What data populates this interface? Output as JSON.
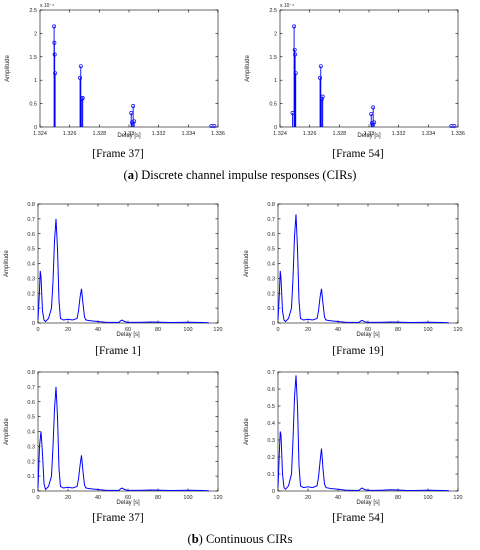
{
  "panels": [
    {
      "caption": "[Frame 37]"
    },
    {
      "caption": "[Frame 54]"
    },
    {
      "caption": "[Frame 1]"
    },
    {
      "caption": "[Frame 19]"
    },
    {
      "caption": "[Frame 37]"
    },
    {
      "caption": "[Frame 54]"
    }
  ],
  "section_a": {
    "letter": "a",
    "text": " Discrete channel impulse responses (CIRs)"
  },
  "section_b": {
    "letter": "b",
    "text": " Continuous CIRs"
  },
  "colors": {
    "series": "#0000ff",
    "axis": "#000000"
  },
  "chart_data": [
    {
      "type": "stem",
      "xlabel": "Delay [s]",
      "ylabel": "Amplitude",
      "y_exponent": "x 10⁻⁴",
      "xlim": [
        1.324,
        1.336
      ],
      "ylim": [
        0,
        2.5
      ],
      "xticks": [
        "1.324",
        "1.326",
        "1.328",
        "1.33",
        "1.332",
        "1.334",
        "1.336"
      ],
      "xtick_values": [
        1.324,
        1.326,
        1.328,
        1.33,
        1.332,
        1.334,
        1.336
      ],
      "yticks": [
        "0",
        "0.5",
        "1",
        "1.5",
        "2",
        "2.5"
      ],
      "ytick_values": [
        0,
        0.5,
        1,
        1.5,
        2,
        2.5
      ],
      "points": [
        {
          "x": 1.32495,
          "y": 2.15
        },
        {
          "x": 1.32497,
          "y": 1.8
        },
        {
          "x": 1.32499,
          "y": 1.55
        },
        {
          "x": 1.32502,
          "y": 1.15
        },
        {
          "x": 1.3267,
          "y": 1.05
        },
        {
          "x": 1.32675,
          "y": 1.3
        },
        {
          "x": 1.32682,
          "y": 0.6
        },
        {
          "x": 1.32688,
          "y": 0.62
        },
        {
          "x": 1.33015,
          "y": 0.3
        },
        {
          "x": 1.3302,
          "y": 0.1
        },
        {
          "x": 1.33028,
          "y": 0.45
        },
        {
          "x": 1.33035,
          "y": 0.12
        },
        {
          "x": 1.33555,
          "y": 0.02
        },
        {
          "x": 1.33575,
          "y": 0.02
        }
      ]
    },
    {
      "type": "stem",
      "xlabel": "Delay [s]",
      "ylabel": "Amplitude",
      "y_exponent": "x 10⁻⁴",
      "xlim": [
        1.324,
        1.336
      ],
      "ylim": [
        0,
        2.5
      ],
      "xticks": [
        "1.324",
        "1.326",
        "1.328",
        "1.33",
        "1.332",
        "1.334",
        "1.336"
      ],
      "xtick_values": [
        1.324,
        1.326,
        1.328,
        1.33,
        1.332,
        1.334,
        1.336
      ],
      "yticks": [
        "0",
        "0.5",
        "1",
        "1.5",
        "2",
        "2.5"
      ],
      "ytick_values": [
        0,
        0.5,
        1,
        1.5,
        2,
        2.5
      ],
      "points": [
        {
          "x": 1.32485,
          "y": 0.3
        },
        {
          "x": 1.32495,
          "y": 2.15
        },
        {
          "x": 1.32499,
          "y": 1.65
        },
        {
          "x": 1.32502,
          "y": 1.55
        },
        {
          "x": 1.32506,
          "y": 1.15
        },
        {
          "x": 1.3267,
          "y": 1.05
        },
        {
          "x": 1.32675,
          "y": 1.3
        },
        {
          "x": 1.32682,
          "y": 0.6
        },
        {
          "x": 1.32688,
          "y": 0.65
        },
        {
          "x": 1.33015,
          "y": 0.28
        },
        {
          "x": 1.3302,
          "y": 0.08
        },
        {
          "x": 1.33028,
          "y": 0.42
        },
        {
          "x": 1.33035,
          "y": 0.1
        },
        {
          "x": 1.33555,
          "y": 0.02
        },
        {
          "x": 1.33575,
          "y": 0.02
        }
      ]
    },
    {
      "type": "line",
      "xlabel": "Delay [s]",
      "ylabel": "Amplitude",
      "xlim": [
        0,
        120
      ],
      "ylim": [
        0,
        0.8
      ],
      "xticks": [
        "0",
        "20",
        "40",
        "60",
        "80",
        "100",
        "120"
      ],
      "xtick_values": [
        0,
        20,
        40,
        60,
        80,
        100,
        120
      ],
      "yticks": [
        "0",
        "0.1",
        "0.2",
        "0.3",
        "0.4",
        "0.5",
        "0.6",
        "0.7",
        "0.8"
      ],
      "ytick_values": [
        0,
        0.1,
        0.2,
        0.3,
        0.4,
        0.5,
        0.6,
        0.7,
        0.8
      ],
      "x": [
        0,
        1,
        1.5,
        2,
        3,
        4,
        5,
        7,
        9,
        10,
        11,
        12,
        13,
        14,
        15,
        17,
        20,
        23,
        26,
        27,
        28,
        29,
        30,
        31,
        32,
        35,
        40,
        45,
        50,
        54,
        55,
        56,
        57,
        58,
        59,
        60,
        62,
        65,
        70,
        75,
        80,
        85,
        90,
        95,
        100,
        105,
        110,
        113,
        114
      ],
      "y": [
        0.02,
        0.22,
        0.35,
        0.31,
        0.08,
        0.02,
        0.01,
        0.03,
        0.1,
        0.28,
        0.55,
        0.7,
        0.5,
        0.15,
        0.03,
        0.02,
        0.025,
        0.02,
        0.03,
        0.08,
        0.17,
        0.23,
        0.13,
        0.04,
        0.02,
        0.015,
        0.01,
        0.005,
        0.004,
        0.004,
        0.015,
        0.02,
        0.014,
        0.01,
        0.006,
        0.005,
        0.004,
        0.004,
        0.005,
        0.007,
        0.006,
        0.004,
        0.003,
        0.004,
        0.005,
        0.004,
        0.003,
        0.002,
        0.0
      ]
    },
    {
      "type": "line",
      "xlabel": "Delay [s]",
      "ylabel": "Amplitude",
      "xlim": [
        0,
        120
      ],
      "ylim": [
        0,
        0.8
      ],
      "xticks": [
        "0",
        "20",
        "40",
        "60",
        "80",
        "100",
        "120"
      ],
      "xtick_values": [
        0,
        20,
        40,
        60,
        80,
        100,
        120
      ],
      "yticks": [
        "0",
        "0.1",
        "0.2",
        "0.3",
        "0.4",
        "0.5",
        "0.6",
        "0.7",
        "0.8"
      ],
      "ytick_values": [
        0,
        0.1,
        0.2,
        0.3,
        0.4,
        0.5,
        0.6,
        0.7,
        0.8
      ],
      "x": [
        0,
        1,
        1.5,
        2,
        3,
        4,
        5,
        7,
        9,
        10,
        11,
        12,
        13,
        14,
        15,
        17,
        20,
        23,
        26,
        27,
        28,
        29,
        30,
        31,
        32,
        35,
        40,
        45,
        50,
        54,
        55,
        56,
        57,
        58,
        59,
        60,
        62,
        65,
        70,
        75,
        80,
        85,
        90,
        95,
        100,
        105,
        110,
        113,
        114
      ],
      "y": [
        0.02,
        0.22,
        0.35,
        0.3,
        0.08,
        0.02,
        0.01,
        0.03,
        0.1,
        0.3,
        0.58,
        0.73,
        0.5,
        0.15,
        0.03,
        0.02,
        0.025,
        0.02,
        0.03,
        0.08,
        0.17,
        0.23,
        0.13,
        0.04,
        0.02,
        0.015,
        0.01,
        0.005,
        0.004,
        0.004,
        0.012,
        0.018,
        0.012,
        0.008,
        0.006,
        0.005,
        0.004,
        0.004,
        0.005,
        0.007,
        0.006,
        0.004,
        0.003,
        0.004,
        0.005,
        0.004,
        0.003,
        0.002,
        0.0
      ]
    },
    {
      "type": "line",
      "xlabel": "Delay [s]",
      "ylabel": "Amplitude",
      "xlim": [
        0,
        120
      ],
      "ylim": [
        0,
        0.8
      ],
      "xticks": [
        "0",
        "20",
        "40",
        "60",
        "80",
        "100",
        "120"
      ],
      "xtick_values": [
        0,
        20,
        40,
        60,
        80,
        100,
        120
      ],
      "yticks": [
        "0",
        "0.1",
        "0.2",
        "0.3",
        "0.4",
        "0.5",
        "0.6",
        "0.7",
        "0.8"
      ],
      "ytick_values": [
        0,
        0.1,
        0.2,
        0.3,
        0.4,
        0.5,
        0.6,
        0.7,
        0.8
      ],
      "x": [
        0,
        1,
        2,
        3,
        4,
        5,
        7,
        9,
        10,
        11,
        12,
        13,
        14,
        15,
        17,
        20,
        23,
        26,
        27,
        28,
        29,
        30,
        31,
        32,
        35,
        40,
        45,
        50,
        54,
        55,
        56,
        57,
        58,
        59,
        60,
        62,
        65,
        70,
        75,
        80,
        85,
        90,
        95,
        100,
        105,
        110,
        113,
        114
      ],
      "y": [
        0.02,
        0.3,
        0.4,
        0.25,
        0.05,
        0.01,
        0.03,
        0.1,
        0.3,
        0.55,
        0.7,
        0.5,
        0.15,
        0.03,
        0.02,
        0.025,
        0.02,
        0.03,
        0.08,
        0.17,
        0.24,
        0.13,
        0.04,
        0.02,
        0.015,
        0.01,
        0.005,
        0.004,
        0.004,
        0.015,
        0.02,
        0.014,
        0.01,
        0.006,
        0.005,
        0.004,
        0.004,
        0.005,
        0.007,
        0.006,
        0.004,
        0.003,
        0.004,
        0.005,
        0.004,
        0.003,
        0.002,
        0.0
      ]
    },
    {
      "type": "line",
      "xlabel": "Delay [s]",
      "ylabel": "Amplitude",
      "xlim": [
        0,
        120
      ],
      "ylim": [
        0,
        0.7
      ],
      "xticks": [
        "0",
        "20",
        "40",
        "60",
        "80",
        "100",
        "120"
      ],
      "xtick_values": [
        0,
        20,
        40,
        60,
        80,
        100,
        120
      ],
      "yticks": [
        "0",
        "0.1",
        "0.2",
        "0.3",
        "0.4",
        "0.5",
        "0.6",
        "0.7"
      ],
      "ytick_values": [
        0,
        0.1,
        0.2,
        0.3,
        0.4,
        0.5,
        0.6,
        0.7
      ],
      "x": [
        0,
        1,
        1.5,
        2,
        3,
        4,
        5,
        7,
        9,
        10,
        11,
        12,
        13,
        14,
        15,
        17,
        20,
        23,
        26,
        27,
        28,
        29,
        30,
        31,
        32,
        35,
        40,
        45,
        50,
        54,
        55,
        56,
        57,
        58,
        59,
        60,
        62,
        65,
        70,
        75,
        80,
        85,
        90,
        95,
        100,
        105,
        110,
        113,
        114
      ],
      "y": [
        0.02,
        0.25,
        0.35,
        0.33,
        0.1,
        0.02,
        0.01,
        0.03,
        0.1,
        0.3,
        0.55,
        0.68,
        0.5,
        0.15,
        0.03,
        0.02,
        0.025,
        0.02,
        0.03,
        0.08,
        0.17,
        0.25,
        0.13,
        0.04,
        0.02,
        0.015,
        0.01,
        0.005,
        0.004,
        0.004,
        0.012,
        0.018,
        0.012,
        0.008,
        0.006,
        0.005,
        0.004,
        0.004,
        0.005,
        0.007,
        0.006,
        0.004,
        0.003,
        0.004,
        0.005,
        0.004,
        0.003,
        0.002,
        0.0
      ]
    }
  ]
}
